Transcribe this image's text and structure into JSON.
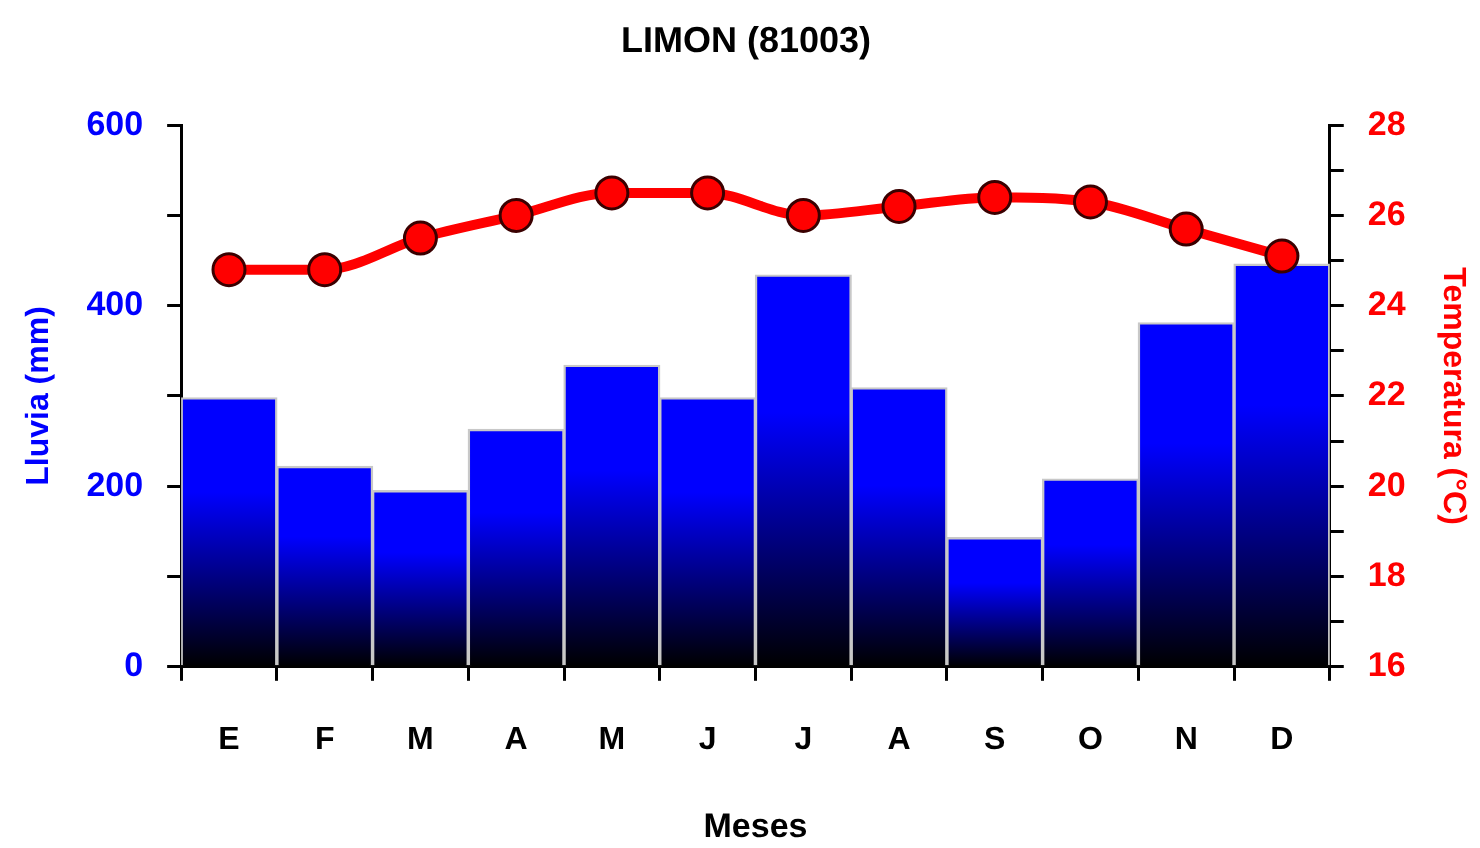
{
  "chart_data": {
    "type": "bar",
    "title": "LIMON (81003)",
    "xlabel": "Meses",
    "ylabel": "Lluvia (mm)",
    "y2label": "Temperatura (°C)",
    "categories": [
      "E",
      "F",
      "M",
      "A",
      "M",
      "J",
      "J",
      "A",
      "S",
      "O",
      "N",
      "D"
    ],
    "series": [
      {
        "color": "#0000ff",
        "values": [
          298,
          222,
          195,
          263,
          334,
          298,
          434,
          309,
          143,
          208,
          381,
          446
        ]
      },
      {
        "type": "line",
        "axis": "y2",
        "color": "#ff0000",
        "values": [
          24.8,
          24.8,
          25.5,
          26.0,
          26.5,
          26.5,
          26.0,
          26.2,
          26.4,
          26.3,
          25.7,
          25.1
        ]
      }
    ],
    "ylim": [
      0,
      600
    ],
    "yticks": [
      0,
      {
        "value": 100,
        "label": null
      },
      200,
      {
        "value": 300,
        "label": null
      },
      400,
      {
        "value": 500,
        "label": null
      },
      600
    ],
    "y2lim": [
      16,
      28
    ],
    "y2ticks": [
      16,
      {
        "value": 17,
        "label": null
      },
      18,
      {
        "value": 19,
        "label": null
      },
      20,
      {
        "value": 21,
        "label": null
      },
      22,
      {
        "value": 23,
        "label": null
      },
      24,
      {
        "value": 25,
        "label": null
      },
      26,
      {
        "value": 27,
        "label": null
      },
      28
    ],
    "grid": false,
    "legend": false,
    "marker": "circle"
  }
}
